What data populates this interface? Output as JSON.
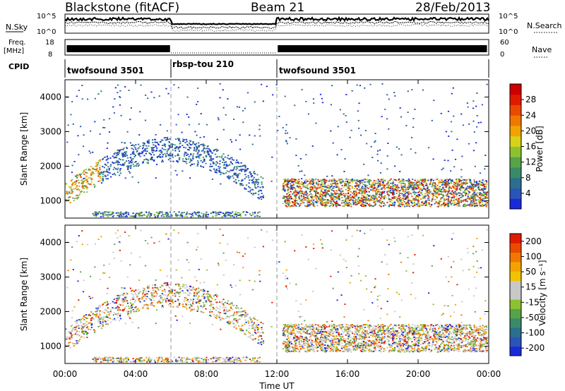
{
  "header": {
    "radar": "Blackstone (fitACF)",
    "beam": "Beam 21",
    "date": "28/Feb/2013"
  },
  "top_panels": {
    "nsky_label": "N.Sky",
    "nsky_ticks": [
      "10^5",
      "10^0"
    ],
    "nsearch_label": "N.Search",
    "nsearch_ticks": [
      "10^5",
      "10^0"
    ],
    "freq_label_1": "Freq.",
    "freq_label_2": "[MHz]",
    "freq_ticks": [
      "18",
      "8"
    ],
    "nave_label": "Nave",
    "nave_ticks": [
      "60",
      "0"
    ],
    "cpid_label": "CPID",
    "cpid_segments": [
      {
        "label": "twofsound 3501",
        "start_hour": 0,
        "end_hour": 6
      },
      {
        "label": "rbsp-tou 210",
        "start_hour": 6,
        "end_hour": 12
      },
      {
        "label": "twofsound 3501",
        "start_hour": 12,
        "end_hour": 24
      }
    ]
  },
  "chart_data": [
    {
      "type": "heatmap",
      "name": "power",
      "ylabel": "Slant Range [km]",
      "y_ticks": [
        1000,
        2000,
        3000,
        4000
      ],
      "ylim": [
        500,
        4500
      ],
      "xlim": [
        0,
        24
      ],
      "colorbar": {
        "label": "Power [dB]",
        "ticks": [
          "4",
          "8",
          "12",
          "16",
          "20",
          "24",
          "28"
        ],
        "range": [
          0,
          32
        ],
        "colors": [
          "#1a2ad8",
          "#2a55b8",
          "#2c6e8e",
          "#3a8a6a",
          "#56a34a",
          "#8cc232",
          "#d6d21a",
          "#f2a300",
          "#f07800",
          "#ea4a00",
          "#e01a00",
          "#cc0000"
        ]
      }
    },
    {
      "type": "heatmap",
      "name": "velocity",
      "xlabel": "Time UT",
      "x_ticks": [
        "00:00",
        "04:00",
        "08:00",
        "12:00",
        "16:00",
        "20:00",
        "00:00"
      ],
      "ylabel": "Slant Range [km]",
      "y_ticks": [
        1000,
        2000,
        3000,
        4000
      ],
      "ylim": [
        500,
        4500
      ],
      "xlim": [
        0,
        24
      ],
      "colorbar": {
        "label": "Velocity [m s⁻¹]",
        "ticks": [
          "200",
          "100",
          "50",
          "15",
          "-15",
          "-50",
          "-100",
          "-200"
        ],
        "colors": [
          "#1a2ad8",
          "#2a55b8",
          "#2c6e8e",
          "#3a8a6a",
          "#56a34a",
          "#8cc232",
          "#c8c8c8",
          "#c8c8c8",
          "#f2c200",
          "#f2a300",
          "#f07800",
          "#ea4a00",
          "#e01a00"
        ]
      }
    }
  ]
}
